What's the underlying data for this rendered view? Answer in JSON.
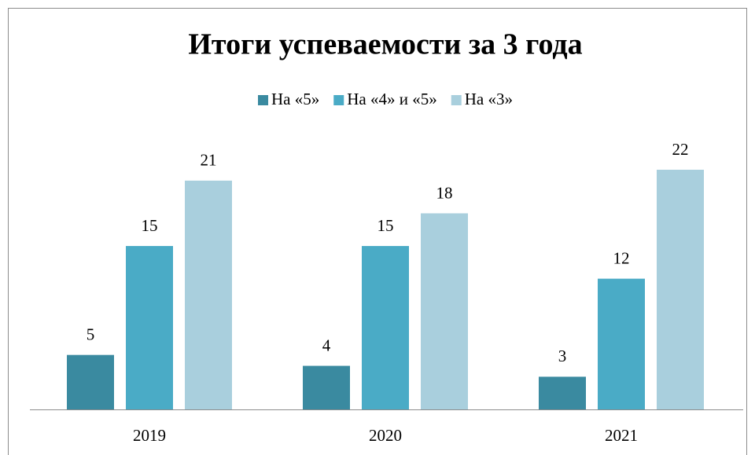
{
  "chart_data": {
    "type": "bar",
    "title": "Итоги успеваемости за 3 года",
    "categories": [
      "2019",
      "2020",
      "2021"
    ],
    "series": [
      {
        "name": "На «5»",
        "color": "#3a8aa0",
        "values": [
          5,
          4,
          3
        ]
      },
      {
        "name": "На «4» и «5»",
        "color": "#4aabc6",
        "values": [
          15,
          15,
          12
        ]
      },
      {
        "name": "На «3»",
        "color": "#a9cfdd",
        "values": [
          21,
          18,
          22
        ]
      }
    ],
    "legend": "top"
  }
}
